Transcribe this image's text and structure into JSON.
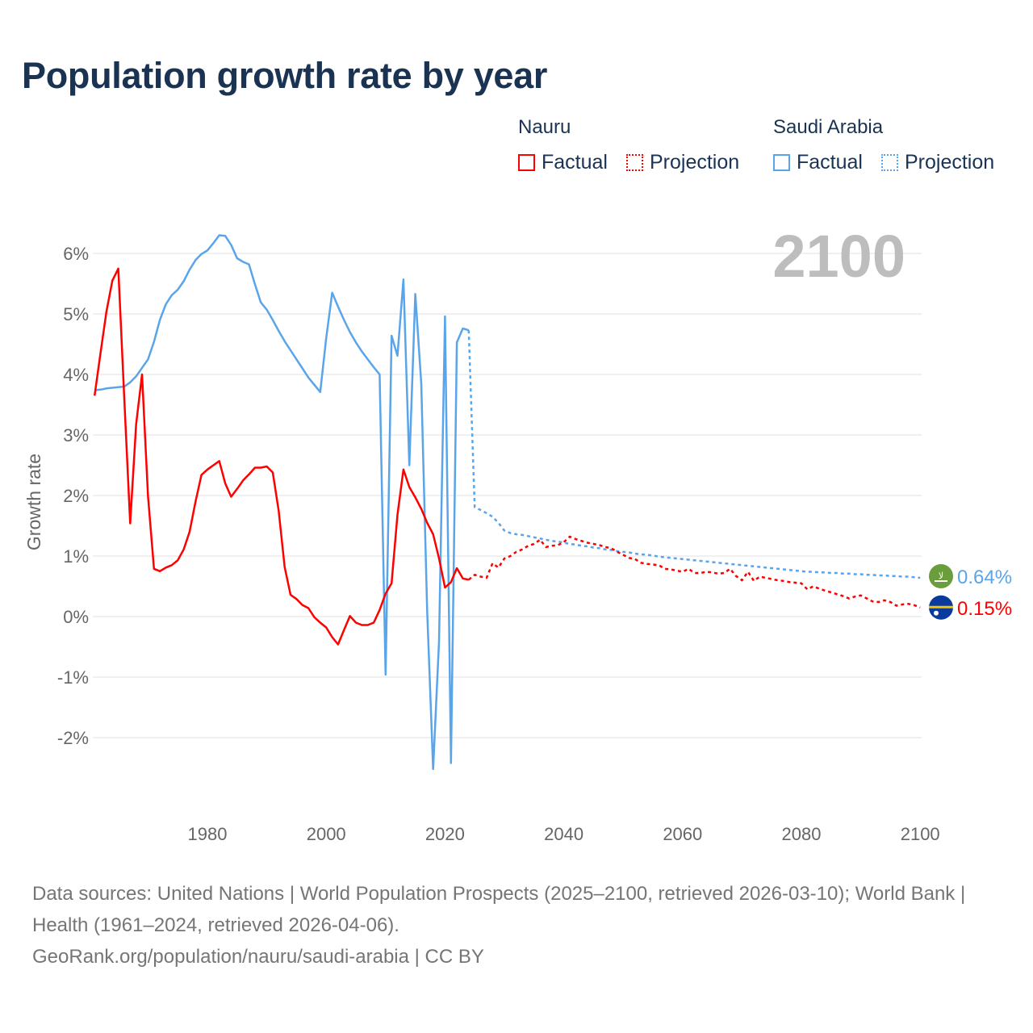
{
  "title": "Population growth rate by year",
  "legend": {
    "groups": [
      {
        "name": "Nauru",
        "factual": "Factual",
        "projection": "Projection",
        "color": "#ff0000"
      },
      {
        "name": "Saudi Arabia",
        "factual": "Factual",
        "projection": "Projection",
        "color": "#5aa5ea"
      }
    ]
  },
  "year_label": "2100",
  "footer": {
    "sources": "Data sources: United Nations | World Population Prospects (2025–2100, retrieved 2026-03-10); World Bank | Health (1961–2024, retrieved 2026-04-06).",
    "url": "GeoRank.org/population/nauru/saudi-arabia | CC BY"
  },
  "chart_data": {
    "type": "line",
    "title": "Population growth rate by year",
    "xlabel": "",
    "ylabel": "Growth rate",
    "xlim": [
      1961,
      2100
    ],
    "ylim": [
      -3,
      6.5
    ],
    "grid": true,
    "x_ticks": [
      1980,
      2000,
      2020,
      2040,
      2060,
      2080,
      2100
    ],
    "x_tick_labels": [
      "1980",
      "2000",
      "2020",
      "2040",
      "2060",
      "2080",
      "2100"
    ],
    "y_ticks": [
      -2,
      -1,
      0,
      1,
      2,
      3,
      4,
      5,
      6
    ],
    "y_tick_labels": [
      "-2%",
      "-1%",
      "0%",
      "1%",
      "2%",
      "3%",
      "4%",
      "5%",
      "6%"
    ],
    "series": [
      {
        "name": "Nauru",
        "color": "#ff0000",
        "end_label": "0.15%",
        "flag": "nauru-flag",
        "factual": {
          "start_year": 1961,
          "values": [
            3.65,
            4.35,
            5.04,
            5.55,
            5.75,
            3.6,
            1.54,
            3.18,
            4.0,
            1.99,
            0.79,
            0.75,
            0.81,
            0.85,
            0.93,
            1.11,
            1.4,
            1.9,
            2.34,
            2.43,
            2.5,
            2.57,
            2.2,
            1.98,
            2.11,
            2.25,
            2.35,
            2.46,
            2.46,
            2.48,
            2.38,
            1.75,
            0.82,
            0.36,
            0.29,
            0.19,
            0.14,
            -0.01,
            -0.1,
            -0.18,
            -0.34,
            -0.46,
            -0.22,
            0.01,
            -0.1,
            -0.14,
            -0.14,
            -0.1,
            0.11,
            0.38,
            0.55,
            1.68,
            2.43,
            2.14,
            1.97,
            1.78,
            1.55,
            1.36,
            0.96,
            0.48,
            0.57,
            0.8,
            0.63,
            0.61
          ]
        },
        "projection": {
          "start_year": 2024,
          "values": [
            0.61,
            0.69,
            0.66,
            0.64,
            0.88,
            0.81,
            0.96,
            1.0,
            1.07,
            1.11,
            1.17,
            1.2,
            1.27,
            1.15,
            1.17,
            1.18,
            1.23,
            1.32,
            1.28,
            1.25,
            1.22,
            1.2,
            1.18,
            1.15,
            1.13,
            1.07,
            1.02,
            0.97,
            0.95,
            0.89,
            0.87,
            0.86,
            0.85,
            0.79,
            0.78,
            0.76,
            0.74,
            0.79,
            0.72,
            0.72,
            0.74,
            0.73,
            0.71,
            0.72,
            0.79,
            0.67,
            0.6,
            0.74,
            0.59,
            0.66,
            0.64,
            0.62,
            0.6,
            0.59,
            0.57,
            0.56,
            0.55,
            0.45,
            0.5,
            0.46,
            0.43,
            0.4,
            0.37,
            0.34,
            0.3,
            0.33,
            0.35,
            0.3,
            0.25,
            0.24,
            0.27,
            0.24,
            0.18,
            0.2,
            0.21,
            0.19,
            0.15
          ]
        }
      },
      {
        "name": "Saudi Arabia",
        "color": "#5aa5ea",
        "end_label": "0.64%",
        "flag": "saudi-arabia-flag",
        "factual": {
          "start_year": 1961,
          "values": [
            3.74,
            3.75,
            3.77,
            3.78,
            3.79,
            3.8,
            3.87,
            3.97,
            4.11,
            4.25,
            4.54,
            4.9,
            5.16,
            5.31,
            5.4,
            5.54,
            5.73,
            5.89,
            5.99,
            6.05,
            6.17,
            6.3,
            6.29,
            6.14,
            5.92,
            5.86,
            5.82,
            5.49,
            5.19,
            5.07,
            4.9,
            4.72,
            4.55,
            4.4,
            4.25,
            4.1,
            3.95,
            3.83,
            3.71,
            4.6,
            5.35,
            5.12,
            4.9,
            4.7,
            4.53,
            4.38,
            4.25,
            4.12,
            4.0,
            -0.96,
            4.64,
            4.31,
            5.57,
            2.5,
            5.33,
            3.85,
            0.1,
            -2.52,
            -0.41,
            4.96,
            -2.42,
            4.53,
            4.76,
            4.73
          ]
        },
        "projection": {
          "start_year": 2024,
          "values": [
            4.73,
            1.81,
            1.76,
            1.71,
            1.65,
            1.55,
            1.42,
            1.38,
            1.36,
            1.35,
            1.33,
            1.31,
            1.29,
            1.27,
            1.25,
            1.24,
            1.22,
            1.2,
            1.19,
            1.17,
            1.16,
            1.14,
            1.13,
            1.11,
            1.1,
            1.08,
            1.07,
            1.06,
            1.04,
            1.03,
            1.02,
            1.01,
            0.99,
            0.98,
            0.97,
            0.96,
            0.95,
            0.94,
            0.93,
            0.92,
            0.91,
            0.9,
            0.89,
            0.88,
            0.87,
            0.86,
            0.85,
            0.84,
            0.83,
            0.82,
            0.81,
            0.8,
            0.79,
            0.78,
            0.77,
            0.76,
            0.75,
            0.74,
            0.74,
            0.73,
            0.73,
            0.72,
            0.72,
            0.71,
            0.71,
            0.7,
            0.7,
            0.69,
            0.69,
            0.68,
            0.68,
            0.67,
            0.67,
            0.66,
            0.66,
            0.65,
            0.64
          ]
        }
      }
    ]
  }
}
